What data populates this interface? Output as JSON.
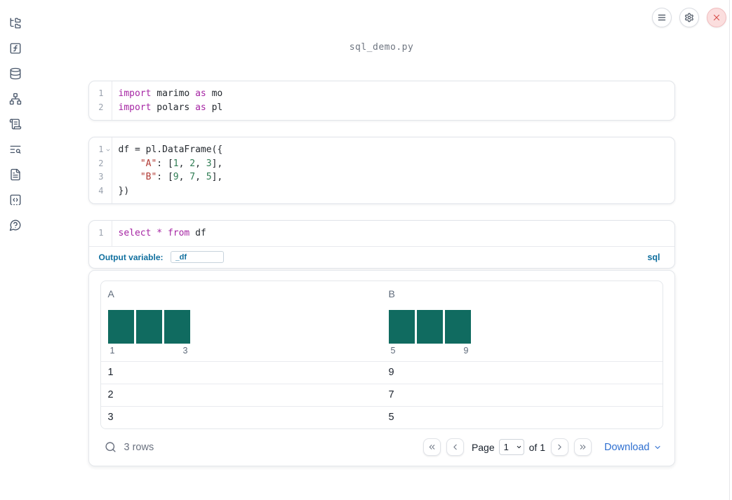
{
  "app": {
    "filename": "sql_demo.py"
  },
  "colors": {
    "histogram_bar": "#106b60",
    "keyword": "#a626a4",
    "string": "#b13a34",
    "number": "#2f7d54",
    "label_blue": "#11709f",
    "link_blue": "#2e6fd0",
    "close_red": "#d9534f"
  },
  "window_controls": {
    "items": [
      {
        "name": "notebook-menu",
        "icon": "hamburger-menu-icon"
      },
      {
        "name": "settings",
        "icon": "gear-icon"
      },
      {
        "name": "shutdown",
        "icon": "close-x-icon"
      }
    ]
  },
  "sidebar": {
    "items": [
      {
        "name": "file-explorer",
        "icon": "folder-tree-icon"
      },
      {
        "name": "variables",
        "icon": "function-square-icon"
      },
      {
        "name": "datasources",
        "icon": "database-icon"
      },
      {
        "name": "dependency-graph",
        "icon": "network-icon"
      },
      {
        "name": "logs",
        "icon": "scroll-text-icon"
      },
      {
        "name": "outline",
        "icon": "text-search-icon"
      },
      {
        "name": "documentation",
        "icon": "file-text-icon"
      },
      {
        "name": "snippets",
        "icon": "code-square-icon"
      },
      {
        "name": "help",
        "icon": "help-bubble-icon"
      }
    ]
  },
  "cells": [
    {
      "lines": [
        {
          "num": "1",
          "tokens": [
            [
              "kw",
              "import"
            ],
            [
              "pl",
              " marimo "
            ],
            [
              "kw",
              "as"
            ],
            [
              "pl",
              " mo"
            ]
          ]
        },
        {
          "num": "2",
          "tokens": [
            [
              "kw",
              "import"
            ],
            [
              "pl",
              " polars "
            ],
            [
              "kw",
              "as"
            ],
            [
              "pl",
              " pl"
            ]
          ]
        }
      ]
    },
    {
      "lines": [
        {
          "num": "1",
          "fold": true,
          "tokens": [
            [
              "pl",
              "df = pl.DataFrame({"
            ]
          ]
        },
        {
          "num": "2",
          "tokens": [
            [
              "pl",
              "    "
            ],
            [
              "str",
              "\"A\""
            ],
            [
              "pl",
              ": ["
            ],
            [
              "num",
              "1"
            ],
            [
              "pl",
              ", "
            ],
            [
              "num",
              "2"
            ],
            [
              "pl",
              ", "
            ],
            [
              "num",
              "3"
            ],
            [
              "pl",
              "],"
            ]
          ]
        },
        {
          "num": "3",
          "tokens": [
            [
              "pl",
              "    "
            ],
            [
              "str",
              "\"B\""
            ],
            [
              "pl",
              ": ["
            ],
            [
              "num",
              "9"
            ],
            [
              "pl",
              ", "
            ],
            [
              "num",
              "7"
            ],
            [
              "pl",
              ", "
            ],
            [
              "num",
              "5"
            ],
            [
              "pl",
              "],"
            ]
          ]
        },
        {
          "num": "4",
          "tokens": [
            [
              "pl",
              "})"
            ]
          ]
        }
      ]
    },
    {
      "lines": [
        {
          "num": "1",
          "tokens": [
            [
              "kw",
              "select"
            ],
            [
              "pl",
              " "
            ],
            [
              "kw",
              "*"
            ],
            [
              "pl",
              " "
            ],
            [
              "kw",
              "from"
            ],
            [
              "pl",
              " df"
            ]
          ]
        }
      ],
      "footer": {
        "label": "Output variable:",
        "value": "_df",
        "language": "sql"
      }
    }
  ],
  "table": {
    "columns": [
      {
        "header": "A",
        "hist": {
          "bars": [
            1,
            1,
            1
          ],
          "min_label": "1",
          "max_label": "3"
        }
      },
      {
        "header": "B",
        "hist": {
          "bars": [
            1,
            1,
            1
          ],
          "min_label": "5",
          "max_label": "9"
        }
      }
    ],
    "rows": [
      [
        "1",
        "9"
      ],
      [
        "2",
        "7"
      ],
      [
        "3",
        "5"
      ]
    ],
    "footer": {
      "row_count": "3 rows",
      "page_label": "Page",
      "page_value": "1",
      "of_label": "of 1",
      "download_label": "Download"
    }
  }
}
